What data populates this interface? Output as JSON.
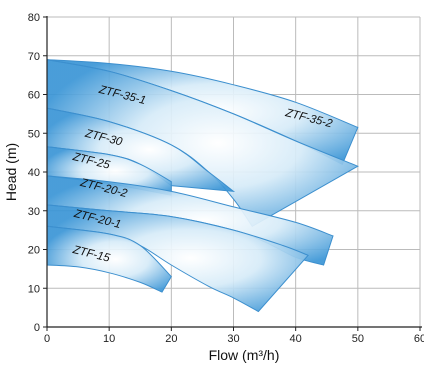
{
  "chart_data": {
    "type": "area",
    "xlabel": "Flow (m³/h)",
    "ylabel": "Head (m)",
    "xlim": [
      0,
      60
    ],
    "ylim": [
      0,
      80
    ],
    "x_ticks": [
      0,
      10,
      20,
      30,
      40,
      50,
      60
    ],
    "y_ticks": [
      0,
      10,
      20,
      30,
      40,
      50,
      60,
      70,
      80
    ],
    "x_tick_labels": [
      "0",
      "10",
      "20",
      "30",
      "40",
      "50",
      "60"
    ],
    "y_tick_labels": [
      "0",
      "10",
      "20",
      "30",
      "40",
      "50",
      "60",
      "70",
      "80"
    ],
    "grid": true,
    "colors": {
      "fill_dark": "#3a95d6",
      "fill_light": "#ffffff",
      "outline": "#3c8fce",
      "grid": "#bbbbbb"
    },
    "series": [
      {
        "name": "ZTF-35-2",
        "upper": [
          [
            0,
            69
          ],
          [
            10,
            68
          ],
          [
            20,
            66
          ],
          [
            30,
            62.5
          ],
          [
            40,
            58
          ],
          [
            50,
            51.5
          ]
        ],
        "lower": [
          [
            0,
            69
          ],
          [
            10,
            66
          ],
          [
            20,
            61
          ],
          [
            30,
            55
          ],
          [
            40,
            48
          ],
          [
            47.5,
            42
          ]
        ],
        "label_at": [
          42,
          53
        ]
      },
      {
        "name": "ZTF-35-1",
        "upper": [
          [
            0,
            69
          ],
          [
            10,
            66
          ],
          [
            20,
            61
          ],
          [
            30,
            55
          ],
          [
            40,
            48
          ],
          [
            50,
            41.5
          ]
        ],
        "lower": [
          [
            0,
            56.5
          ],
          [
            10,
            53
          ],
          [
            20,
            47
          ],
          [
            26,
            40
          ],
          [
            30,
            33
          ],
          [
            33,
            26
          ]
        ],
        "label_at": [
          12,
          59
        ]
      },
      {
        "name": "ZTF-30",
        "upper": [
          [
            0,
            56.5
          ],
          [
            10,
            53
          ],
          [
            20,
            47
          ],
          [
            26,
            40
          ],
          [
            30,
            35
          ]
        ],
        "lower": [
          [
            0,
            46.5
          ],
          [
            10,
            44.5
          ],
          [
            15,
            42
          ],
          [
            20,
            36.5
          ]
        ],
        "label_at": [
          9,
          48
        ]
      },
      {
        "name": "ZTF-25",
        "upper": [
          [
            0,
            46.5
          ],
          [
            10,
            44.5
          ],
          [
            15,
            42
          ],
          [
            20,
            37.5
          ]
        ],
        "lower": [
          [
            0,
            39
          ],
          [
            10,
            37
          ],
          [
            20,
            34
          ]
        ],
        "label_at": [
          7,
          42
        ]
      },
      {
        "name": "ZTF-20-2",
        "upper": [
          [
            0,
            39
          ],
          [
            10,
            37.5
          ],
          [
            20,
            35
          ],
          [
            30,
            31
          ],
          [
            40,
            27
          ],
          [
            46,
            23.5
          ]
        ],
        "lower": [
          [
            0,
            31.5
          ],
          [
            10,
            30
          ],
          [
            20,
            28.5
          ],
          [
            30,
            25
          ],
          [
            35,
            22
          ],
          [
            40,
            18
          ],
          [
            44.5,
            16
          ]
        ],
        "label_at": [
          9,
          35
        ]
      },
      {
        "name": "ZTF-20-1",
        "upper": [
          [
            0,
            31.5
          ],
          [
            10,
            30
          ],
          [
            20,
            28.5
          ],
          [
            30,
            25
          ],
          [
            38,
            21
          ],
          [
            42,
            18.5
          ]
        ],
        "lower": [
          [
            0,
            26
          ],
          [
            10,
            24
          ],
          [
            15,
            21
          ],
          [
            20,
            16
          ],
          [
            26,
            10.5
          ],
          [
            30,
            7.5
          ],
          [
            34,
            4
          ]
        ],
        "label_at": [
          8,
          27
        ]
      },
      {
        "name": "ZTF-15",
        "upper": [
          [
            0,
            26
          ],
          [
            10,
            24
          ],
          [
            15,
            21
          ],
          [
            20,
            13
          ]
        ],
        "lower": [
          [
            0,
            16
          ],
          [
            5,
            15.5
          ],
          [
            10,
            14
          ],
          [
            15,
            11.5
          ],
          [
            18.5,
            9
          ]
        ],
        "label_at": [
          7,
          18
        ]
      }
    ]
  }
}
